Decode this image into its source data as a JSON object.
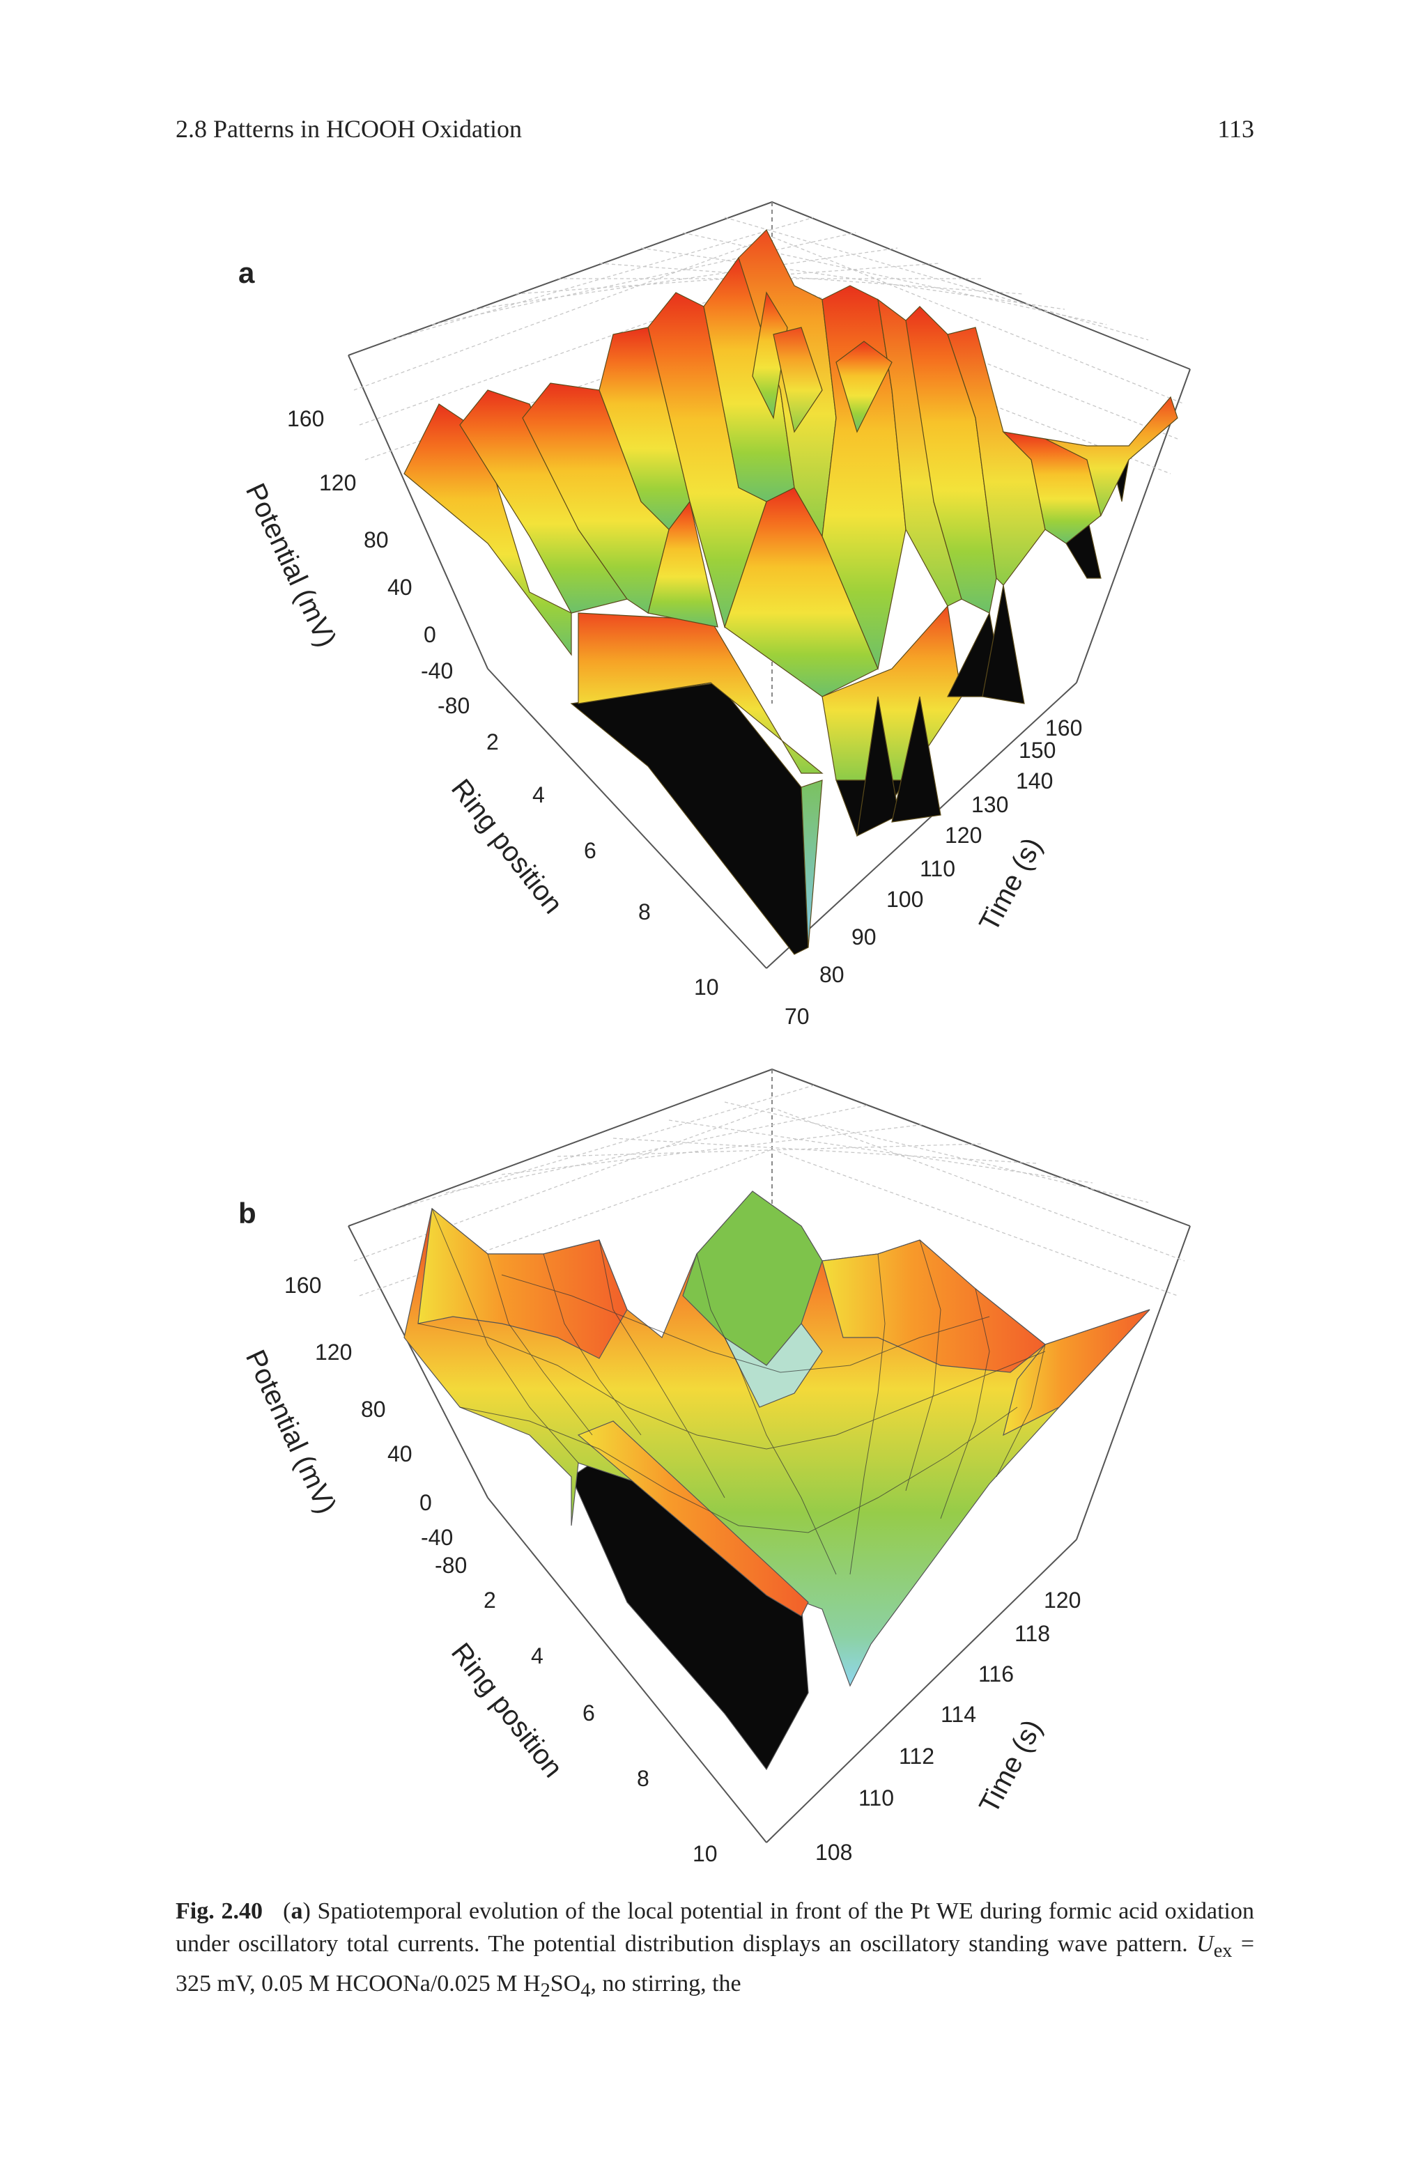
{
  "header": {
    "section": "2.8  Patterns in HCOOH Oxidation",
    "page_number": "113"
  },
  "figure": {
    "caption_label": "Fig. 2.40",
    "caption_panel": "a",
    "caption_text": "Spatiotemporal evolution of the local potential in front of the Pt WE during formic acid oxidation under oscillatory total currents. The potential distribution displays an oscillatory standing wave pattern.",
    "caption_cond": "= 325 mV, 0.05 M HCOONa/0.025 M H",
    "caption_tail": ", no stirring, the"
  },
  "chart_data": [
    {
      "type": "surface3d",
      "panel_label": "a",
      "zlabel": "Potential (mV)",
      "xlabel": "Ring position",
      "ylabel": "Time (s)",
      "zticks": [
        "160",
        "120",
        "80",
        "40",
        "0",
        "-40",
        "-80"
      ],
      "xticks": [
        "2",
        "4",
        "6",
        "8",
        "10"
      ],
      "yticks": [
        "70",
        "80",
        "90",
        "100",
        "110",
        "120",
        "130",
        "140",
        "150",
        "160"
      ],
      "zlim": [
        -80,
        180
      ],
      "xlim": [
        1,
        10
      ],
      "ylim": [
        70,
        165
      ],
      "description": "oscillatory standing wave: repeated potential spikes up to about 170 mV, minima near -80 mV"
    },
    {
      "type": "surface3d",
      "panel_label": "b",
      "zlabel": "Potential (mV)",
      "xlabel": "Ring position",
      "ylabel": "Time (s)",
      "zticks": [
        "160",
        "120",
        "80",
        "40",
        "0",
        "-40",
        "-80"
      ],
      "xticks": [
        "2",
        "4",
        "6",
        "8",
        "10"
      ],
      "yticks": [
        "108",
        "110",
        "112",
        "114",
        "116",
        "118",
        "120"
      ],
      "zlim": [
        -80,
        180
      ],
      "xlim": [
        1,
        10
      ],
      "ylim": [
        107,
        121
      ]
    }
  ]
}
